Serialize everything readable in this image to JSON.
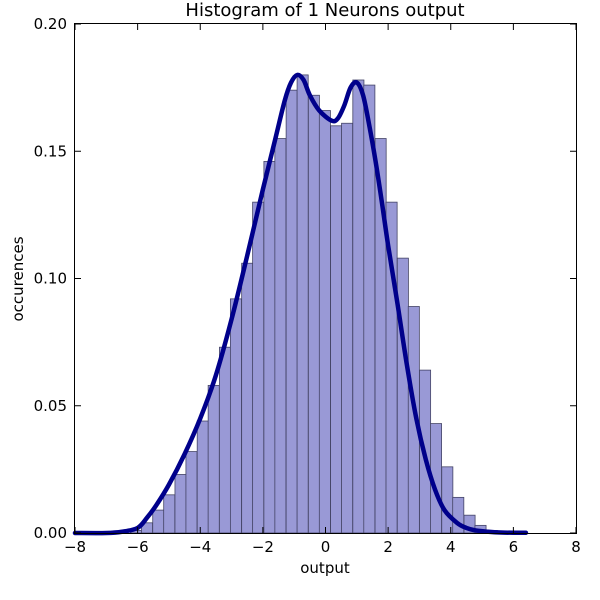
{
  "chart_data": {
    "type": "bar",
    "title": "Histogram of 1 Neurons output",
    "xlabel": "output",
    "ylabel": "occurences",
    "xlim": [
      -8,
      8
    ],
    "ylim": [
      0,
      0.2
    ],
    "xticks": [
      "−8",
      "−6",
      "−4",
      "−2",
      "0",
      "2",
      "4",
      "6",
      "8"
    ],
    "xtick_values": [
      -8,
      -6,
      -4,
      -2,
      0,
      2,
      4,
      6,
      8
    ],
    "yticks": [
      "0.00",
      "0.05",
      "0.10",
      "0.15",
      "0.20"
    ],
    "ytick_values": [
      0,
      0.05,
      0.1,
      0.15,
      0.2
    ],
    "bin_width": 0.355,
    "bins": [
      {
        "x": -6.05,
        "y": 0.001
      },
      {
        "x": -5.7,
        "y": 0.004
      },
      {
        "x": -5.34,
        "y": 0.009
      },
      {
        "x": -4.99,
        "y": 0.015
      },
      {
        "x": -4.63,
        "y": 0.023
      },
      {
        "x": -4.28,
        "y": 0.032
      },
      {
        "x": -3.92,
        "y": 0.044
      },
      {
        "x": -3.57,
        "y": 0.058
      },
      {
        "x": -3.21,
        "y": 0.073
      },
      {
        "x": -2.86,
        "y": 0.092
      },
      {
        "x": -2.5,
        "y": 0.106
      },
      {
        "x": -2.15,
        "y": 0.13
      },
      {
        "x": -1.79,
        "y": 0.146
      },
      {
        "x": -1.44,
        "y": 0.155
      },
      {
        "x": -1.08,
        "y": 0.174
      },
      {
        "x": -0.73,
        "y": 0.18
      },
      {
        "x": -0.37,
        "y": 0.172
      },
      {
        "x": -0.02,
        "y": 0.166
      },
      {
        "x": 0.34,
        "y": 0.16
      },
      {
        "x": 0.69,
        "y": 0.161
      },
      {
        "x": 1.05,
        "y": 0.178
      },
      {
        "x": 1.4,
        "y": 0.176
      },
      {
        "x": 1.76,
        "y": 0.155
      },
      {
        "x": 2.11,
        "y": 0.13
      },
      {
        "x": 2.47,
        "y": 0.108
      },
      {
        "x": 2.82,
        "y": 0.089
      },
      {
        "x": 3.18,
        "y": 0.064
      },
      {
        "x": 3.53,
        "y": 0.043
      },
      {
        "x": 3.89,
        "y": 0.026
      },
      {
        "x": 4.24,
        "y": 0.014
      },
      {
        "x": 4.6,
        "y": 0.007
      },
      {
        "x": 4.95,
        "y": 0.003
      },
      {
        "x": 5.31,
        "y": 0.001
      },
      {
        "x": 5.66,
        "y": 0.0005
      },
      {
        "x": 6.02,
        "y": 0.0002
      }
    ],
    "kde": {
      "x": [
        -8,
        -7,
        -6.5,
        -6,
        -5.7,
        -5.4,
        -5,
        -4.5,
        -4,
        -3.5,
        -3,
        -2.5,
        -2,
        -1.6,
        -1.3,
        -1.1,
        -0.9,
        -0.7,
        -0.5,
        -0.2,
        0.2,
        0.4,
        0.6,
        0.8,
        1,
        1.2,
        1.4,
        1.6,
        1.8,
        2,
        2.3,
        2.6,
        2.9,
        3.2,
        3.5,
        3.8,
        4.2,
        4.5,
        4.8,
        5.2,
        5.6,
        6,
        6.4
      ],
      "y": [
        0,
        0,
        0.0005,
        0.002,
        0.006,
        0.011,
        0.019,
        0.031,
        0.045,
        0.062,
        0.084,
        0.109,
        0.135,
        0.155,
        0.17,
        0.177,
        0.18,
        0.178,
        0.172,
        0.166,
        0.162,
        0.163,
        0.168,
        0.175,
        0.177,
        0.172,
        0.16,
        0.146,
        0.13,
        0.113,
        0.09,
        0.066,
        0.045,
        0.029,
        0.017,
        0.009,
        0.004,
        0.002,
        0.001,
        0.0005,
        0.0002,
        0.0001,
        0.0001
      ]
    },
    "grid": false,
    "colors": {
      "bar_fill": "#9999d6",
      "bar_edge": "#444466",
      "kde_line": "#00008b",
      "frame": "#000000"
    }
  }
}
